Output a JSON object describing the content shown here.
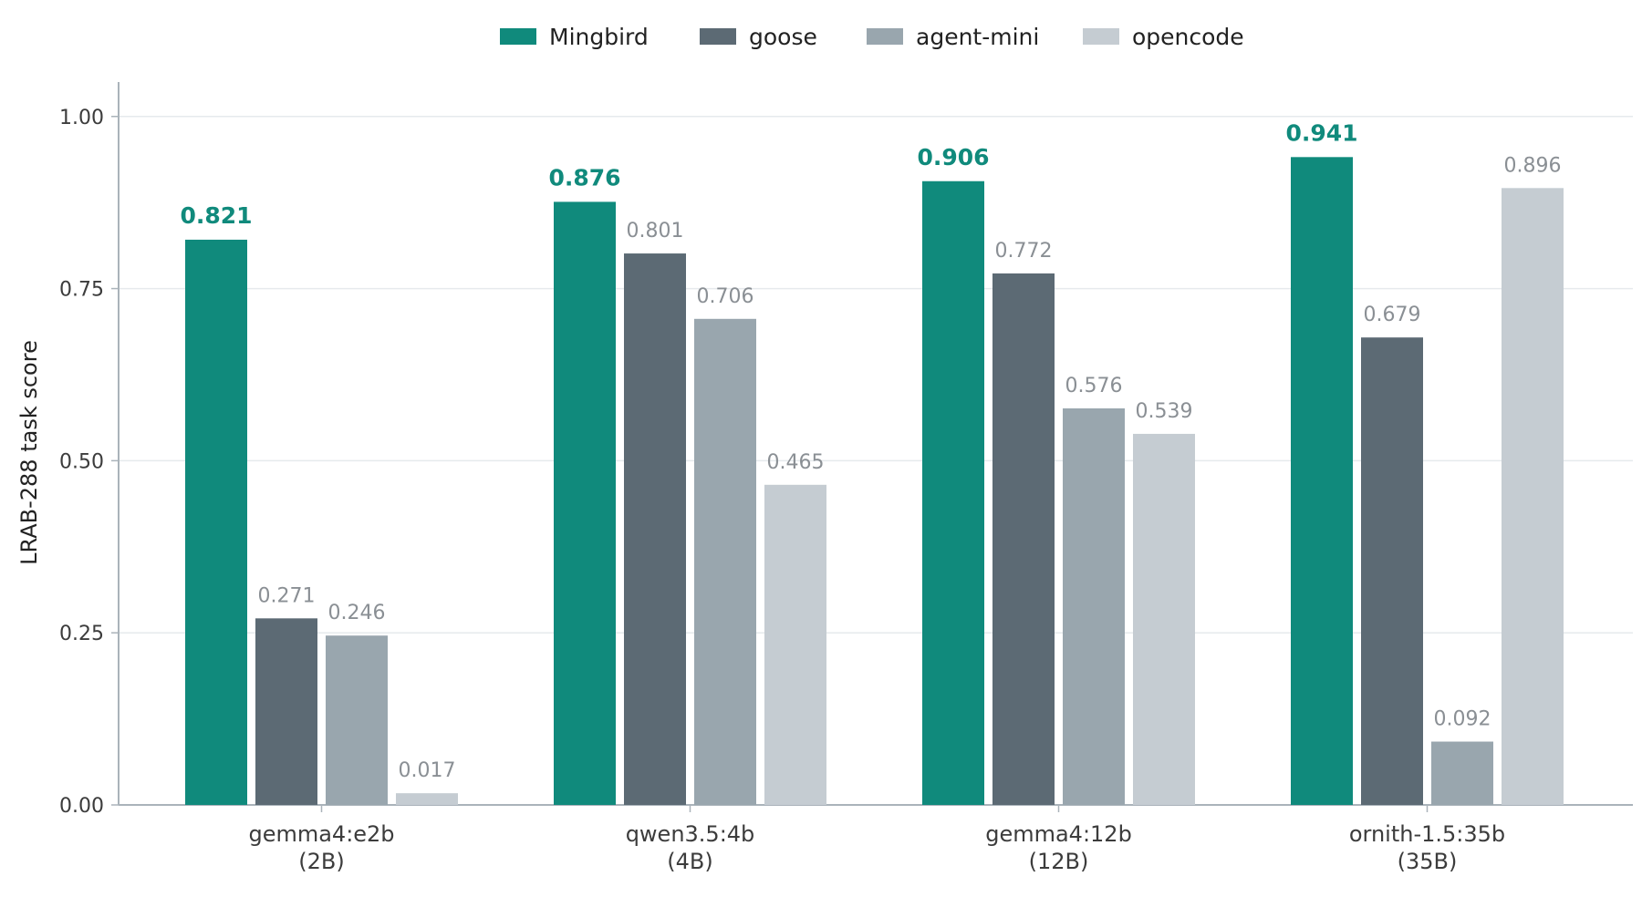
{
  "chart_data": {
    "type": "bar",
    "categories": [
      "gemma4:e2b\n(2B)",
      "qwen3.5:4b\n(4B)",
      "gemma4:12b\n(12B)",
      "ornith-1.5:35b\n(35B)"
    ],
    "series": [
      {
        "name": "Mingbird",
        "color": "#108a7c",
        "values": [
          0.821,
          0.876,
          0.906,
          0.941
        ]
      },
      {
        "name": "goose",
        "color": "#5c6a74",
        "values": [
          0.271,
          0.801,
          0.772,
          0.679
        ]
      },
      {
        "name": "agent-mini",
        "color": "#99a6ae",
        "values": [
          0.246,
          0.706,
          0.576,
          0.092
        ]
      },
      {
        "name": "opencode",
        "color": "#c5ccd2",
        "values": [
          0.017,
          0.465,
          0.539,
          0.896
        ]
      }
    ],
    "value_labels": [
      [
        "0.821",
        "0.876",
        "0.906",
        "0.941"
      ],
      [
        "0.271",
        "0.801",
        "0.772",
        "0.679"
      ],
      [
        "0.246",
        "0.706",
        "0.576",
        "0.092"
      ],
      [
        "0.017",
        "0.465",
        "0.539",
        "0.896"
      ]
    ],
    "highlight_series": "Mingbird",
    "ylabel": "LRAB-288 task score",
    "xlabel": "",
    "title": "",
    "ylim": [
      0,
      1.05
    ],
    "yticks": [
      "0.00",
      "0.25",
      "0.50",
      "0.75",
      "1.00"
    ],
    "grid": "horizontal",
    "legend_position": "top-center"
  },
  "colors": {
    "axis": "#aab3ba",
    "grid": "#e6eaed",
    "tick_text": "#3c3c3c",
    "value_label": "#8a8f94",
    "highlight_label": "#108a7c"
  }
}
